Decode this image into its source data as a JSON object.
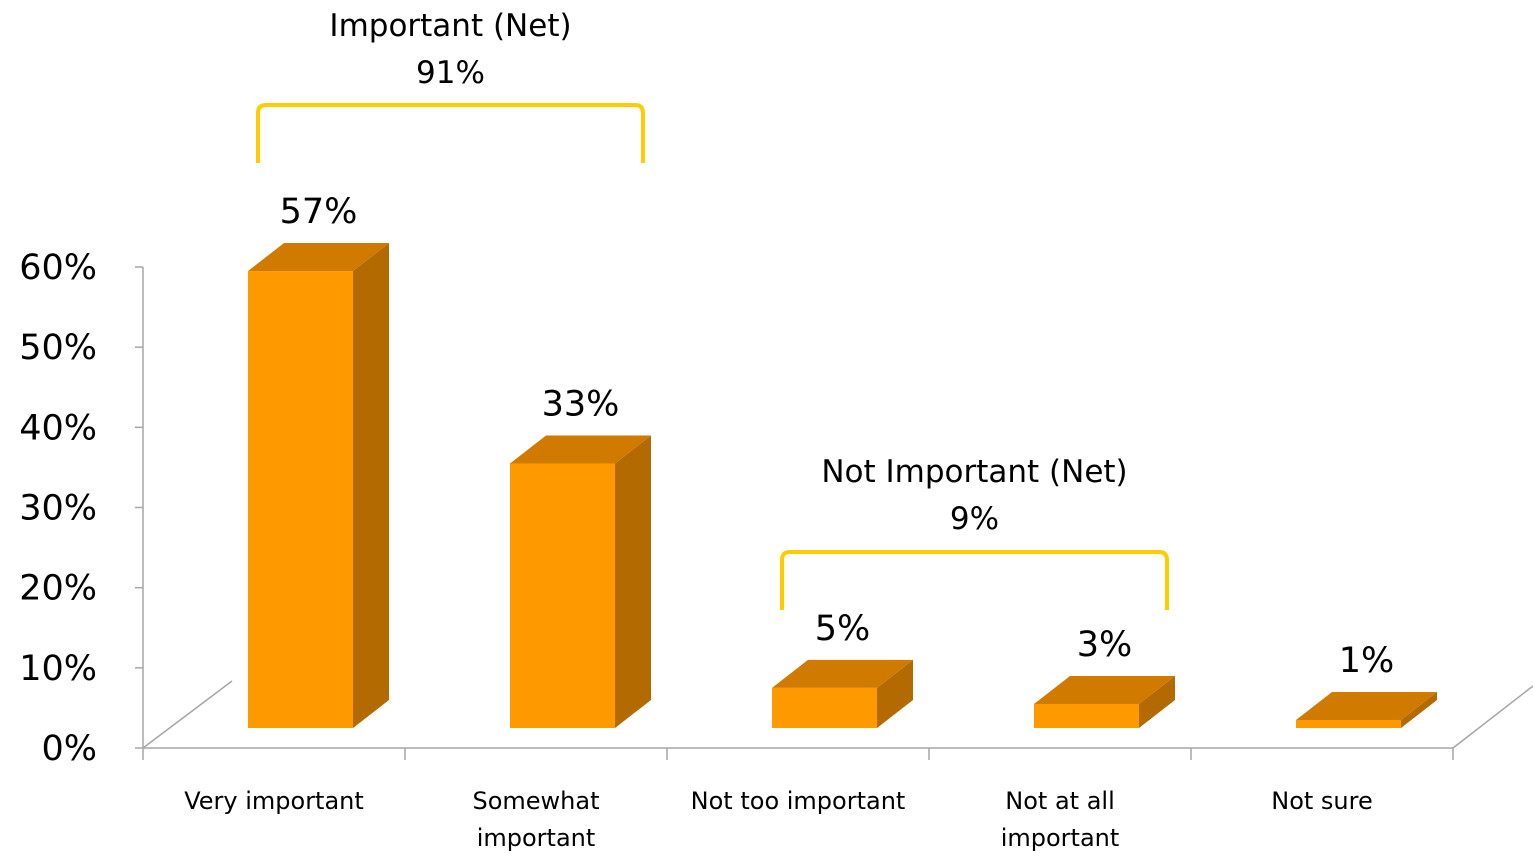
{
  "chart_data": {
    "type": "bar",
    "categories": [
      [
        "Very important"
      ],
      [
        "Somewhat",
        "important"
      ],
      [
        "Not too important"
      ],
      [
        "Not at all",
        "important"
      ],
      [
        "Not sure"
      ]
    ],
    "values": [
      57,
      33,
      5,
      3,
      1
    ],
    "data_labels": [
      "57%",
      "33%",
      "5%",
      "3%",
      "1%"
    ],
    "ylim": [
      0,
      60
    ],
    "yticks": [
      {
        "value": 0,
        "label": "0%"
      },
      {
        "value": 10,
        "label": "10%"
      },
      {
        "value": 20,
        "label": "20%"
      },
      {
        "value": 30,
        "label": "30%"
      },
      {
        "value": 40,
        "label": "40%"
      },
      {
        "value": 50,
        "label": "50%"
      },
      {
        "value": 60,
        "label": "60%"
      }
    ],
    "style": "3d-bar",
    "grid": false,
    "groups": [
      {
        "label": "Important (Net)",
        "value_label": "91%",
        "from_index": 0,
        "to_index": 1
      },
      {
        "label": "Not Important (Net)",
        "value_label": "9%",
        "from_index": 2,
        "to_index": 3
      }
    ],
    "colors": {
      "bar_front": "#FF9900",
      "bar_top": "#D07A00",
      "bar_side": "#B36A00",
      "bracket": "#FFCC00",
      "axis": "#A6A6A6"
    }
  }
}
